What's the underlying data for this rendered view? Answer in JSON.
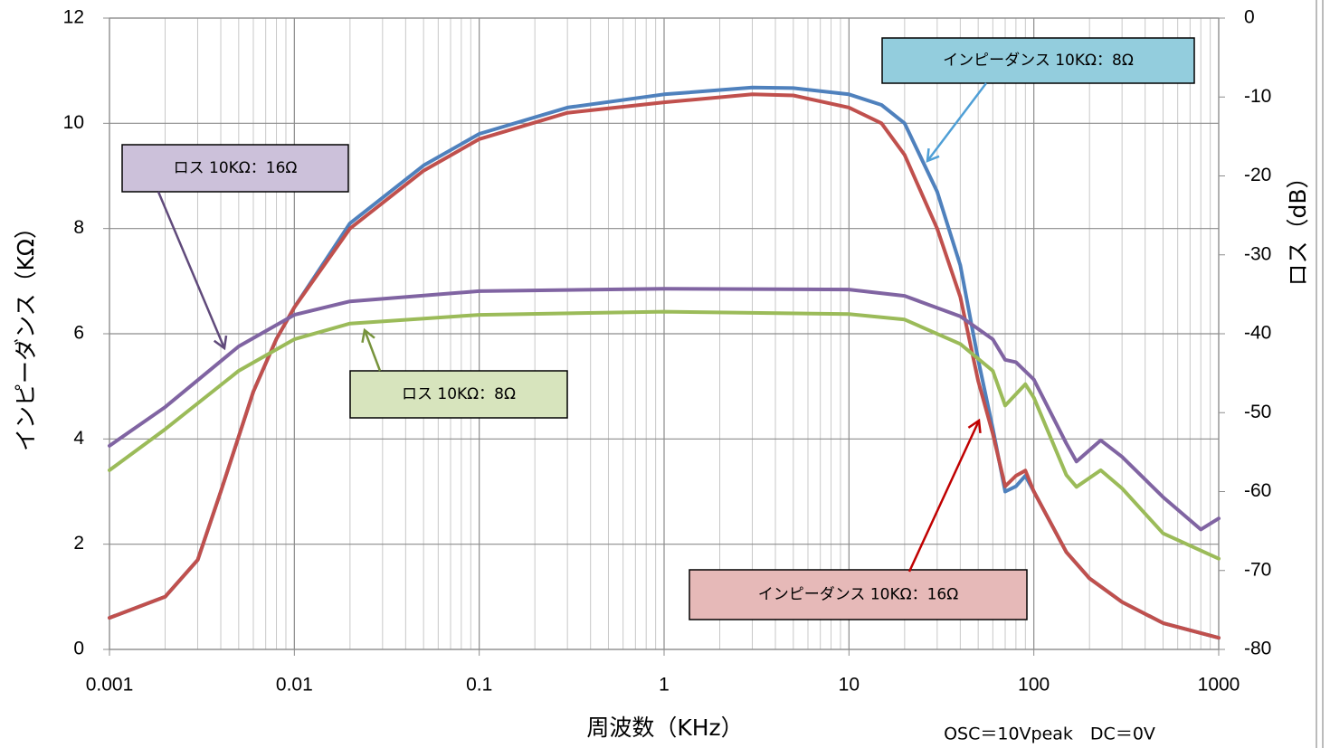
{
  "chart_data": {
    "type": "line",
    "x_label": "周波数（KHz）",
    "y_label": "インピーダンス（KΩ）",
    "y2_label": "ロス（dB）",
    "xscale": "log",
    "xlim": [
      0.001,
      1000
    ],
    "xticks": [
      0.001,
      0.01,
      0.1,
      1,
      10,
      100,
      1000
    ],
    "ylim": [
      0,
      12
    ],
    "yticks": [
      0,
      2,
      4,
      6,
      8,
      10,
      12
    ],
    "y2lim": [
      -80,
      0
    ],
    "y2ticks": [
      0,
      -10,
      -20,
      -30,
      -40,
      -50,
      -60,
      -70,
      -80
    ],
    "grid": true,
    "series": [
      {
        "name": "インピーダンス 10KΩ：8Ω",
        "color": "#4f81bd",
        "axis": "y",
        "x": [
          0.001,
          0.002,
          0.003,
          0.004,
          0.006,
          0.008,
          0.01,
          0.02,
          0.05,
          0.1,
          0.3,
          1,
          3,
          5,
          10,
          15,
          20,
          30,
          40,
          50,
          60,
          70,
          80,
          90,
          100,
          150,
          200,
          300,
          500,
          1000
        ],
        "values": [
          0.6,
          1.0,
          1.7,
          3.0,
          4.9,
          5.9,
          6.5,
          8.1,
          9.2,
          9.8,
          10.3,
          10.55,
          10.68,
          10.67,
          10.55,
          10.35,
          10.0,
          8.7,
          7.3,
          5.5,
          4.2,
          3.0,
          3.1,
          3.3,
          3.0,
          1.85,
          1.35,
          0.9,
          0.5,
          0.22
        ]
      },
      {
        "name": "インピーダンス 10KΩ：16Ω",
        "color": "#c0504d",
        "axis": "y",
        "x": [
          0.001,
          0.002,
          0.003,
          0.004,
          0.006,
          0.008,
          0.01,
          0.02,
          0.05,
          0.1,
          0.3,
          1,
          3,
          5,
          10,
          15,
          20,
          30,
          40,
          50,
          60,
          70,
          80,
          90,
          100,
          150,
          200,
          300,
          500,
          1000
        ],
        "values": [
          0.6,
          1.0,
          1.7,
          3.0,
          4.9,
          5.9,
          6.5,
          8.0,
          9.1,
          9.7,
          10.2,
          10.4,
          10.55,
          10.53,
          10.3,
          10.0,
          9.4,
          8.0,
          6.7,
          5.1,
          4.1,
          3.1,
          3.3,
          3.4,
          3.0,
          1.85,
          1.35,
          0.9,
          0.5,
          0.22
        ]
      },
      {
        "name": "ロス 10KΩ：16Ω",
        "color": "#8064a2",
        "axis": "y2",
        "x": [
          0.001,
          0.002,
          0.005,
          0.01,
          0.02,
          0.1,
          1,
          10,
          20,
          40,
          60,
          70,
          80,
          100,
          150,
          170,
          230,
          300,
          500,
          800,
          1000
        ],
        "values": [
          -54.2,
          -49.3,
          -41.6,
          -37.6,
          -35.9,
          -34.6,
          -34.3,
          -34.4,
          -35.2,
          -37.8,
          -40.7,
          -43.3,
          -43.6,
          -45.8,
          -53.9,
          -56.2,
          -53.5,
          -55.6,
          -60.7,
          -64.8,
          -63.4
        ]
      },
      {
        "name": "ロス 10KΩ：8Ω",
        "color": "#9bbb59",
        "axis": "y2",
        "x": [
          0.001,
          0.002,
          0.005,
          0.01,
          0.02,
          0.1,
          1,
          10,
          20,
          40,
          60,
          70,
          90,
          100,
          150,
          170,
          230,
          300,
          500,
          1000
        ],
        "values": [
          -57.3,
          -52.1,
          -44.7,
          -40.7,
          -38.7,
          -37.6,
          -37.2,
          -37.5,
          -38.2,
          -41.3,
          -44.7,
          -49.1,
          -46.4,
          -48.1,
          -57.9,
          -59.4,
          -57.3,
          -59.6,
          -65.3,
          -68.5
        ]
      }
    ],
    "annotations": [
      {
        "text": "インピーダンス 10KΩ：8Ω",
        "fill": "#93cddd",
        "arrow_color": "#4f9fd6"
      },
      {
        "text": "ロス 10KΩ：16Ω",
        "fill": "#ccc1da",
        "arrow_color": "#604a7b"
      },
      {
        "text": "ロス 10KΩ：8Ω",
        "fill": "#d7e4bd",
        "arrow_color": "#77933c"
      },
      {
        "text": "インピーダンス 10KΩ：16Ω",
        "fill": "#e6b9b8",
        "arrow_color": "#c00000"
      }
    ],
    "note": "OSC＝10Vpeak　DC＝0V"
  }
}
